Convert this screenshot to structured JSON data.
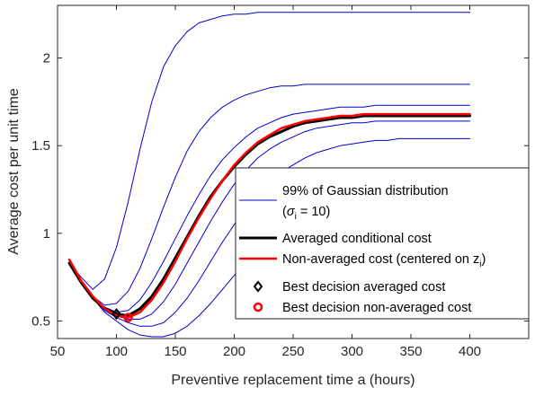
{
  "chart_data": {
    "type": "line",
    "xlabel": "Preventive replacement time a (hours)",
    "ylabel": "Average cost per unit time",
    "xlim": [
      50,
      450
    ],
    "ylim": [
      0.4,
      2.3
    ],
    "xticks": [
      50,
      100,
      150,
      200,
      250,
      300,
      350,
      400
    ],
    "xtick_labels": [
      "50",
      "100",
      "150",
      "200",
      "250",
      "300",
      "350",
      "400"
    ],
    "yticks": [
      0.5,
      1,
      1.5,
      2
    ],
    "ytick_labels": [
      "0.5",
      "1",
      "1.5",
      "2"
    ],
    "grid": false,
    "legend_placement": "lower-right",
    "legend": {
      "gaussian_line1": "99% of Gaussian distribution",
      "gaussian_line2_prefix": "(",
      "gaussian_sigma": "σ",
      "gaussian_sub": "i",
      "gaussian_line2_suffix": " = 10)",
      "averaged": "Averaged conditional cost",
      "nonaveraged_prefix": "Non-averaged cost (centered on z",
      "nonaveraged_sub": "i",
      "nonaveraged_suffix": ")",
      "best_averaged": "Best decision averaged cost",
      "best_nonaveraged": "Best decision non-averaged cost"
    },
    "colors": {
      "gaussian": "#0000cc",
      "averaged": "#000000",
      "nonaveraged": "#ff0000"
    },
    "x": [
      60,
      70,
      80,
      90,
      100,
      110,
      120,
      130,
      140,
      150,
      160,
      170,
      180,
      190,
      200,
      210,
      220,
      230,
      240,
      250,
      260,
      270,
      280,
      290,
      300,
      310,
      320,
      330,
      340,
      350,
      360,
      370,
      380,
      390,
      400
    ],
    "series": [
      {
        "name": "Averaged conditional cost",
        "kind": "averaged",
        "values": [
          0.83,
          0.72,
          0.63,
          0.57,
          0.54,
          0.53,
          0.57,
          0.64,
          0.74,
          0.86,
          0.98,
          1.1,
          1.21,
          1.3,
          1.38,
          1.45,
          1.51,
          1.55,
          1.58,
          1.61,
          1.63,
          1.64,
          1.65,
          1.66,
          1.66,
          1.67,
          1.67,
          1.67,
          1.67,
          1.67,
          1.67,
          1.67,
          1.67,
          1.67,
          1.67
        ]
      },
      {
        "name": "Non-averaged cost (centered on zi)",
        "kind": "nonaveraged",
        "values": [
          0.85,
          0.73,
          0.64,
          0.57,
          0.53,
          0.52,
          0.55,
          0.62,
          0.72,
          0.84,
          0.97,
          1.09,
          1.2,
          1.3,
          1.39,
          1.46,
          1.52,
          1.56,
          1.6,
          1.62,
          1.64,
          1.65,
          1.66,
          1.67,
          1.67,
          1.68,
          1.68,
          1.68,
          1.68,
          1.68,
          1.68,
          1.68,
          1.68,
          1.68,
          1.68
        ]
      },
      {
        "kind": "gaussian",
        "values": [
          0.83,
          0.75,
          0.68,
          0.74,
          0.92,
          1.18,
          1.48,
          1.75,
          1.95,
          2.07,
          2.15,
          2.2,
          2.22,
          2.24,
          2.25,
          2.25,
          2.26,
          2.26,
          2.26,
          2.26,
          2.26,
          2.26,
          2.26,
          2.26,
          2.26,
          2.26,
          2.26,
          2.26,
          2.26,
          2.26,
          2.26,
          2.26,
          2.26,
          2.26,
          2.26
        ]
      },
      {
        "kind": "gaussian",
        "values": [
          0.83,
          0.72,
          0.64,
          0.59,
          0.6,
          0.67,
          0.8,
          0.97,
          1.15,
          1.32,
          1.47,
          1.58,
          1.66,
          1.72,
          1.76,
          1.79,
          1.81,
          1.83,
          1.84,
          1.84,
          1.85,
          1.85,
          1.85,
          1.85,
          1.85,
          1.85,
          1.85,
          1.85,
          1.85,
          1.85,
          1.85,
          1.85,
          1.85,
          1.85,
          1.85
        ]
      },
      {
        "kind": "gaussian",
        "values": [
          0.83,
          0.72,
          0.63,
          0.58,
          0.55,
          0.56,
          0.62,
          0.72,
          0.84,
          0.97,
          1.1,
          1.22,
          1.33,
          1.42,
          1.49,
          1.55,
          1.6,
          1.63,
          1.66,
          1.68,
          1.69,
          1.7,
          1.71,
          1.72,
          1.72,
          1.72,
          1.73,
          1.73,
          1.73,
          1.73,
          1.73,
          1.73,
          1.73,
          1.73,
          1.73
        ]
      },
      {
        "kind": "gaussian",
        "values": [
          0.83,
          0.72,
          0.63,
          0.57,
          0.53,
          0.51,
          0.51,
          0.54,
          0.61,
          0.71,
          0.83,
          0.95,
          1.07,
          1.18,
          1.28,
          1.36,
          1.43,
          1.48,
          1.52,
          1.55,
          1.58,
          1.6,
          1.61,
          1.62,
          1.63,
          1.63,
          1.64,
          1.64,
          1.64,
          1.64,
          1.64,
          1.64,
          1.64,
          1.64,
          1.64
        ]
      },
      {
        "kind": "gaussian",
        "values": [
          0.83,
          0.72,
          0.63,
          0.56,
          0.52,
          0.49,
          0.47,
          0.47,
          0.49,
          0.55,
          0.63,
          0.73,
          0.84,
          0.95,
          1.05,
          1.14,
          1.22,
          1.29,
          1.35,
          1.39,
          1.43,
          1.46,
          1.48,
          1.5,
          1.51,
          1.52,
          1.53,
          1.53,
          1.54,
          1.54,
          1.54,
          1.54,
          1.54,
          1.54,
          1.54
        ]
      },
      {
        "kind": "gaussian",
        "values": [
          0.83,
          0.72,
          0.63,
          0.55,
          0.5,
          0.45,
          0.42,
          0.41,
          0.41,
          0.43,
          0.47,
          0.53,
          0.6,
          0.68,
          0.76,
          0.84,
          0.92,
          0.99,
          1.05,
          1.11,
          1.16,
          1.2,
          1.23,
          1.26,
          1.28,
          1.29,
          1.3,
          1.31,
          1.32,
          1.32,
          1.33,
          1.33,
          1.33,
          1.33,
          1.33
        ]
      }
    ],
    "markers": [
      {
        "name": "Best decision averaged cost",
        "kind": "averaged",
        "x": 100,
        "y": 0.54
      },
      {
        "name": "Best decision non-averaged cost",
        "kind": "nonaveraged",
        "x": 110,
        "y": 0.52
      }
    ]
  }
}
